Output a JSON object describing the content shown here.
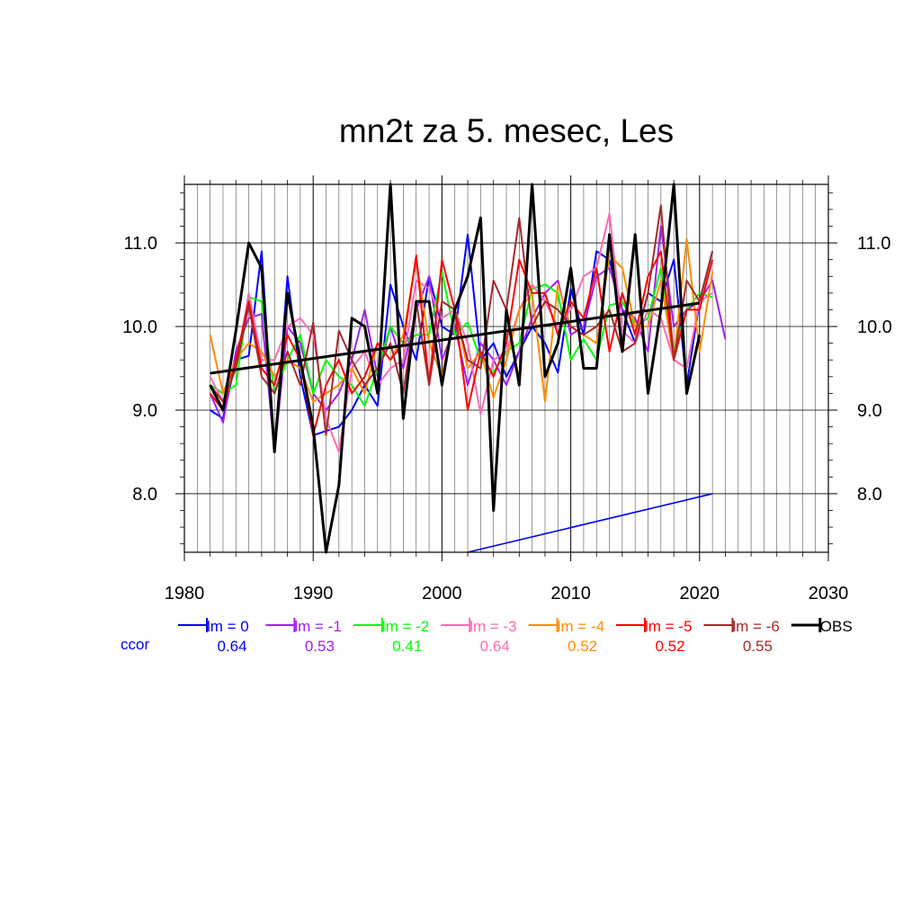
{
  "chart_data": {
    "type": "line",
    "title": "mn2t za 5. mesec, Les",
    "xlabel": "",
    "ylabel": "",
    "xlim": [
      1980,
      2030
    ],
    "ylim": [
      7.3,
      11.7
    ],
    "xticks": [
      "1980",
      "1990",
      "2000",
      "2010",
      "2020",
      "2030"
    ],
    "yticks": [
      "8.0",
      "9.0",
      "10.0",
      "11.0"
    ],
    "grid": true,
    "legend_position": "bottom",
    "ccor_label": "ccor",
    "series": [
      {
        "name": "lm = 0",
        "color": "#0000ff",
        "ccor": "0.64",
        "x_start": 1982,
        "values": [
          9.0,
          8.9,
          9.6,
          9.65,
          10.9,
          8.5,
          10.6,
          9.4,
          8.7,
          8.75,
          8.8,
          9.0,
          9.3,
          9.05,
          10.5,
          10.0,
          9.6,
          10.6,
          10.0,
          9.9,
          11.1,
          9.6,
          9.8,
          9.4,
          9.7,
          10.0,
          9.8,
          9.45,
          10.45,
          9.9,
          10.9,
          10.8,
          10.2,
          9.8,
          10.4,
          10.3,
          10.8,
          9.3,
          10.3,
          10.9
        ]
      },
      {
        "name": "lm = -1",
        "color": "#a020f0",
        "ccor": "0.53",
        "x_start": 1982,
        "values": [
          9.2,
          8.85,
          9.7,
          10.1,
          10.15,
          8.5,
          10.0,
          9.8,
          9.2,
          9.0,
          9.2,
          9.6,
          10.2,
          9.4,
          10.0,
          9.5,
          10.2,
          10.6,
          9.6,
          10.0,
          9.3,
          9.8,
          9.6,
          9.3,
          9.7,
          10.1,
          10.4,
          10.55,
          9.9,
          10.0,
          10.6,
          10.7,
          10.2,
          10.1,
          9.7,
          11.2,
          10.0,
          10.2,
          10.3,
          10.55,
          9.85
        ]
      },
      {
        "name": "lm = -2",
        "color": "#00ff00",
        "ccor": "0.41",
        "x_start": 1982,
        "values": [
          9.3,
          9.2,
          9.3,
          10.35,
          10.3,
          9.2,
          9.6,
          9.9,
          9.2,
          9.6,
          9.4,
          9.3,
          9.05,
          9.5,
          10.0,
          9.8,
          9.9,
          9.9,
          10.65,
          9.9,
          10.05,
          9.6,
          9.45,
          9.7,
          9.8,
          10.45,
          10.5,
          10.4,
          9.6,
          9.85,
          9.6,
          10.25,
          10.3,
          10.0,
          10.1,
          10.7,
          9.7,
          10.2,
          10.4,
          10.35
        ]
      },
      {
        "name": "lm = -3",
        "color": "#ff69b4",
        "ccor": "0.64",
        "x_start": 1982,
        "values": [
          9.4,
          9.1,
          9.5,
          10.4,
          9.6,
          9.6,
          10.0,
          10.1,
          9.9,
          8.9,
          8.5,
          9.5,
          9.7,
          9.3,
          9.5,
          9.6,
          10.55,
          10.45,
          10.1,
          10.2,
          9.8,
          8.95,
          9.6,
          9.7,
          10.2,
          10.5,
          10.3,
          10.0,
          10.2,
          10.6,
          10.7,
          11.35,
          9.95,
          9.8,
          10.2,
          10.1,
          9.6,
          9.5,
          10.3,
          10.4
        ]
      },
      {
        "name": "lm = -4",
        "color": "#ff8c00",
        "ccor": "0.52",
        "x_start": 1982,
        "values": [
          9.9,
          9.2,
          9.6,
          9.8,
          9.7,
          9.4,
          9.6,
          9.5,
          9.1,
          9.2,
          9.3,
          9.5,
          9.2,
          9.8,
          9.6,
          9.9,
          10.8,
          9.8,
          9.4,
          10.2,
          9.5,
          9.7,
          9.15,
          9.6,
          10.2,
          10.4,
          9.1,
          10.5,
          10.0,
          9.9,
          9.8,
          10.85,
          10.7,
          10.0,
          10.0,
          10.55,
          9.6,
          11.05,
          9.7,
          10.65
        ]
      },
      {
        "name": "lm = -5",
        "color": "#ff0000",
        "ccor": "0.52",
        "x_start": 1982,
        "values": [
          9.2,
          9.0,
          9.6,
          10.3,
          9.5,
          9.3,
          9.9,
          9.6,
          8.7,
          9.3,
          9.6,
          9.2,
          9.4,
          9.8,
          9.6,
          9.8,
          10.85,
          9.3,
          10.8,
          10.2,
          9.0,
          9.7,
          9.4,
          9.8,
          10.8,
          10.4,
          10.4,
          9.9,
          10.3,
          10.1,
          10.7,
          9.7,
          10.4,
          9.9,
          10.6,
          10.9,
          9.6,
          10.2,
          10.2,
          10.8
        ]
      },
      {
        "name": "lm = -6",
        "color": "#a52a2a",
        "ccor": "0.55",
        "x_start": 1982,
        "values": [
          9.3,
          9.1,
          9.5,
          10.25,
          9.4,
          9.2,
          9.7,
          9.3,
          10.05,
          8.7,
          9.95,
          9.6,
          9.3,
          9.5,
          9.8,
          9.2,
          10.3,
          9.3,
          10.3,
          10.2,
          9.6,
          9.5,
          10.55,
          10.2,
          11.3,
          10.0,
          10.3,
          10.2,
          10.0,
          9.9,
          10.0,
          10.2,
          9.7,
          9.8,
          10.4,
          11.45,
          9.6,
          10.55,
          10.3,
          10.9
        ]
      },
      {
        "name": "OBS",
        "color": "#000000",
        "ccor": "",
        "x_start": 1982,
        "values": [
          9.3,
          9.0,
          9.95,
          11.0,
          10.7,
          8.5,
          10.4,
          9.6,
          8.8,
          7.3,
          8.1,
          10.1,
          10.0,
          9.2,
          11.7,
          8.9,
          10.3,
          10.3,
          9.3,
          10.2,
          10.6,
          11.3,
          7.8,
          10.2,
          9.3,
          11.7,
          9.4,
          9.8,
          10.7,
          9.5,
          9.5,
          11.1,
          9.7,
          11.1,
          9.2,
          10.2,
          11.7,
          9.2,
          9.9
        ]
      }
    ],
    "trend_lines": [
      {
        "color": "#000000",
        "x": [
          1982,
          2020
        ],
        "y": [
          9.44,
          10.28
        ]
      },
      {
        "color": "#0000ff",
        "x": [
          2002,
          2021
        ],
        "y": [
          7.3,
          8.0
        ]
      }
    ]
  }
}
